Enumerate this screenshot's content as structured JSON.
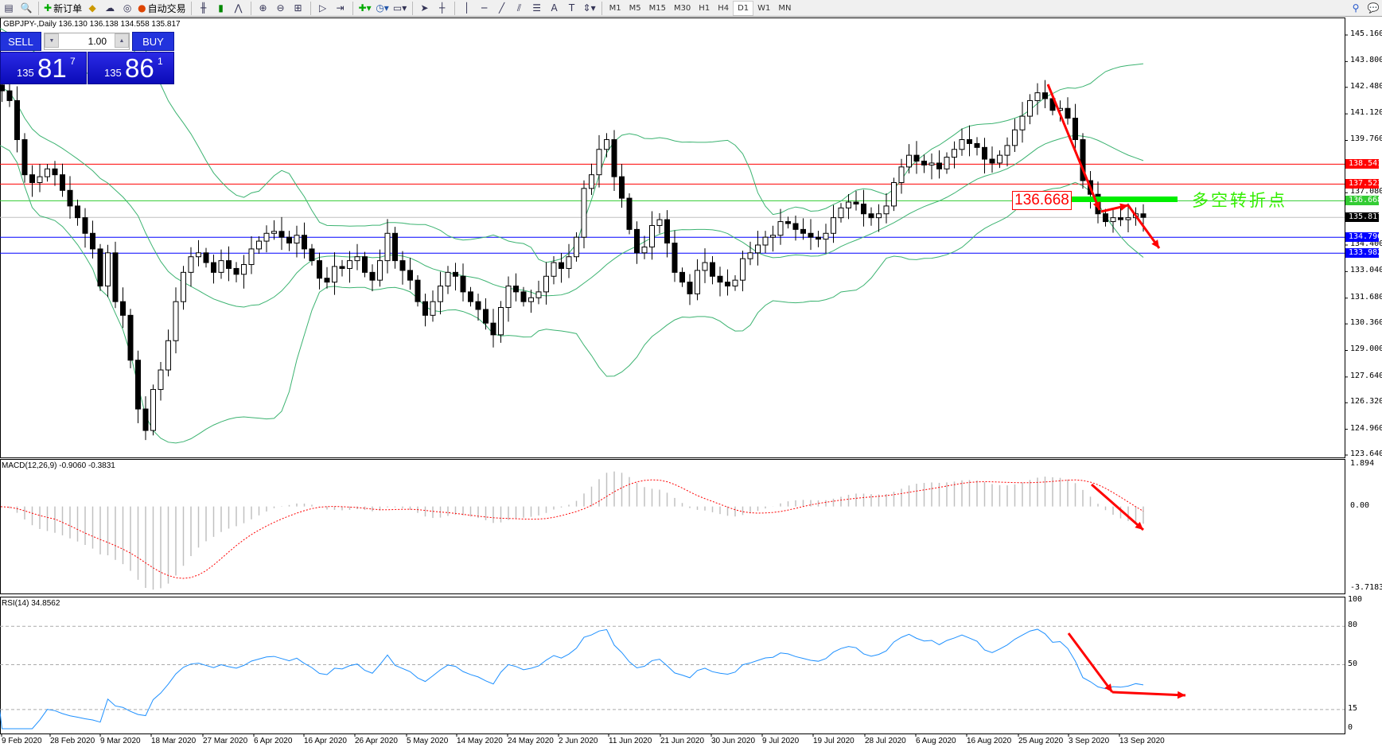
{
  "toolbar": {
    "new_order": "新订单",
    "auto_trading": "自动交易",
    "timeframes": [
      "M1",
      "M5",
      "M15",
      "M30",
      "H1",
      "H4",
      "D1",
      "W1",
      "MN"
    ],
    "active_timeframe": "D1"
  },
  "chart": {
    "header": "GBPJPY-,Daily  136.130 136.138 134.558 135.817",
    "trade_panel": {
      "sell_label": "SELL",
      "buy_label": "BUY",
      "lot": "1.00",
      "sell_small": "135",
      "sell_big": "81",
      "sell_sup": "7",
      "buy_small": "135",
      "buy_big": "86",
      "buy_sup": "1"
    },
    "annotation_price": "136.668",
    "annotation_text": "多空转折点",
    "macd_label": "MACD(12,26,9) -0.9060 -0.3831",
    "rsi_label": "RSI(14) 34.8562"
  },
  "chart_data": {
    "type": "candlestick",
    "symbol": "GBPJPY",
    "timeframe": "Daily",
    "price_axis_ticks": [
      "145.160",
      "143.800",
      "142.480",
      "141.120",
      "139.760",
      "137.080",
      "134.400",
      "133.040",
      "131.680",
      "130.360",
      "129.000",
      "127.640",
      "126.320",
      "124.960",
      "123.640"
    ],
    "ylim": [
      123.64,
      145.16
    ],
    "date_ticks": [
      "9 Feb 2020",
      "28 Feb 2020",
      "9 Mar 2020",
      "18 Mar 2020",
      "27 Mar 2020",
      "6 Apr 2020",
      "16 Apr 2020",
      "26 Apr 2020",
      "5 May 2020",
      "14 May 2020",
      "24 May 2020",
      "2 Jun 2020",
      "11 Jun 2020",
      "21 Jun 2020",
      "30 Jun 2020",
      "9 Jul 2020",
      "19 Jul 2020",
      "28 Jul 2020",
      "6 Aug 2020",
      "16 Aug 2020",
      "25 Aug 2020",
      "3 Sep 2020",
      "13 Sep 2020"
    ],
    "closes": [
      142.6,
      142.3,
      141.8,
      139.8,
      138.0,
      137.6,
      137.9,
      138.3,
      138.0,
      137.2,
      136.4,
      135.8,
      135.0,
      134.2,
      132.3,
      134.0,
      131.5,
      130.8,
      128.5,
      126.0,
      124.9,
      127.0,
      128.0,
      129.5,
      131.5,
      133.0,
      133.8,
      134.0,
      133.5,
      133.0,
      133.6,
      133.2,
      132.9,
      133.4,
      134.2,
      134.6,
      135.0,
      135.1,
      134.8,
      134.5,
      134.9,
      134.2,
      133.6,
      132.7,
      132.5,
      133.3,
      133.2,
      133.6,
      133.8,
      133.0,
      132.6,
      133.6,
      135.0,
      133.6,
      133.1,
      132.6,
      131.5,
      130.8,
      131.5,
      132.3,
      133.0,
      132.8,
      132.0,
      131.5,
      131.1,
      130.4,
      129.8,
      131.2,
      132.3,
      132.0,
      131.5,
      131.7,
      132.0,
      132.8,
      133.5,
      133.2,
      133.8,
      134.8,
      137.3,
      138.0,
      139.3,
      139.8,
      137.9,
      136.8,
      135.2,
      134.0,
      134.3,
      135.4,
      135.7,
      134.5,
      133.0,
      132.5,
      131.9,
      133.1,
      133.5,
      132.8,
      132.5,
      132.3,
      132.6,
      133.7,
      134.0,
      134.4,
      134.8,
      134.9,
      135.6,
      135.5,
      135.2,
      135.0,
      134.8,
      134.7,
      135.0,
      135.8,
      136.3,
      136.6,
      136.5,
      136.0,
      135.8,
      136.0,
      136.4,
      137.6,
      138.4,
      139.0,
      138.7,
      138.5,
      138.6,
      138.3,
      138.9,
      139.3,
      139.8,
      139.6,
      139.4,
      138.8,
      138.6,
      139.0,
      139.5,
      140.3,
      141.0,
      141.8,
      142.2,
      141.9,
      141.3,
      141.4,
      140.9,
      139.8,
      137.7,
      137.0,
      136.0,
      135.6,
      135.8,
      135.7,
      135.8,
      136.0,
      135.817
    ],
    "horizontal_lines": [
      {
        "price": "138.541",
        "color": "#ff0000"
      },
      {
        "price": "137.523",
        "color": "#ff0000"
      },
      {
        "price": "136.668",
        "color": "#33cc33"
      },
      {
        "price": "135.817",
        "color": "#000000",
        "line_color": "#c0c0c0"
      },
      {
        "price": "134.796",
        "color": "#0000ff"
      },
      {
        "price": "133.982",
        "color": "#0000ff"
      }
    ],
    "indicators": {
      "bollinger": {
        "period": 20,
        "deviation": 2,
        "color": "#3cb371"
      },
      "macd": {
        "fast": 12,
        "slow": 26,
        "signal": 9,
        "ticks": [
          "1.894",
          "0.00",
          "-3.7183"
        ],
        "ylim": [
          -3.7183,
          1.894
        ],
        "signal_color": "#ff0000",
        "hist_color": "#c0c0c0"
      },
      "rsi": {
        "period": 14,
        "ticks": [
          "100",
          "80",
          "50",
          "15",
          "0"
        ],
        "levels": [
          80,
          50,
          15
        ],
        "color": "#1e90ff"
      }
    },
    "arrow_color": "#ff0000"
  }
}
